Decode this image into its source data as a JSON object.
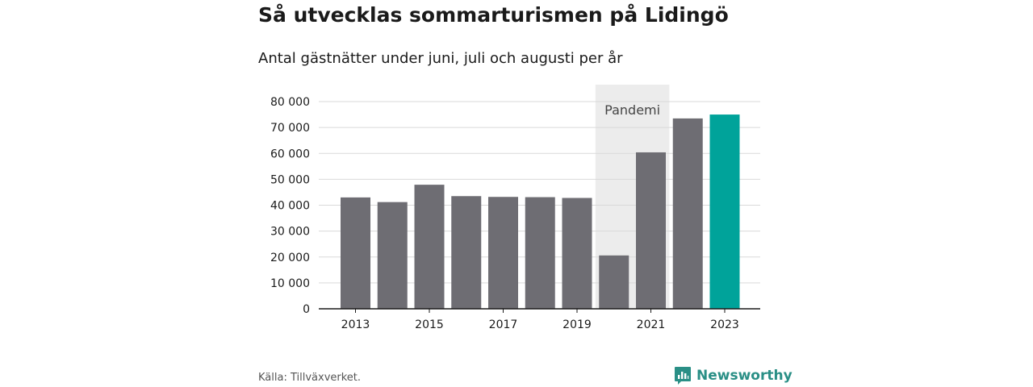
{
  "header": {
    "title": "Så utvecklas sommarturismen på Lidingö",
    "subtitle": "Antal gästnätter under juni, juli och augusti per år"
  },
  "footer": {
    "source": "Källa: Tillväxverket.",
    "brand": "Newsworthy",
    "brand_icon": "bar-chart-speech-bubble-icon"
  },
  "colors": {
    "bar": "#6e6d73",
    "highlight": "#00a39a",
    "band": "#ececec",
    "grid": "#d9d9d9",
    "brand": "#2a8f86"
  },
  "chart_data": {
    "type": "bar",
    "title": "Så utvecklas sommarturismen på Lidingö",
    "subtitle": "Antal gästnätter under juni, juli och augusti per år",
    "categories": [
      "2013",
      "2014",
      "2015",
      "2016",
      "2017",
      "2018",
      "2019",
      "2020",
      "2021",
      "2022",
      "2023"
    ],
    "values": [
      43000,
      41200,
      47900,
      43500,
      43200,
      43100,
      42800,
      20600,
      60400,
      73500,
      75000
    ],
    "highlight_category": "2023",
    "x_tick_labels": [
      "2013",
      "2015",
      "2017",
      "2019",
      "2021",
      "2023"
    ],
    "y_ticks": [
      0,
      10000,
      20000,
      30000,
      40000,
      50000,
      60000,
      70000,
      80000
    ],
    "y_tick_labels": [
      "0",
      "10 000",
      "20 000",
      "30 000",
      "40 000",
      "50 000",
      "60 000",
      "70 000",
      "80 000"
    ],
    "ylim": [
      0,
      80000
    ],
    "grid": true,
    "annotation": {
      "label": "Pandemi",
      "from": "2020",
      "to": "2021"
    },
    "xlabel": "",
    "ylabel": ""
  }
}
